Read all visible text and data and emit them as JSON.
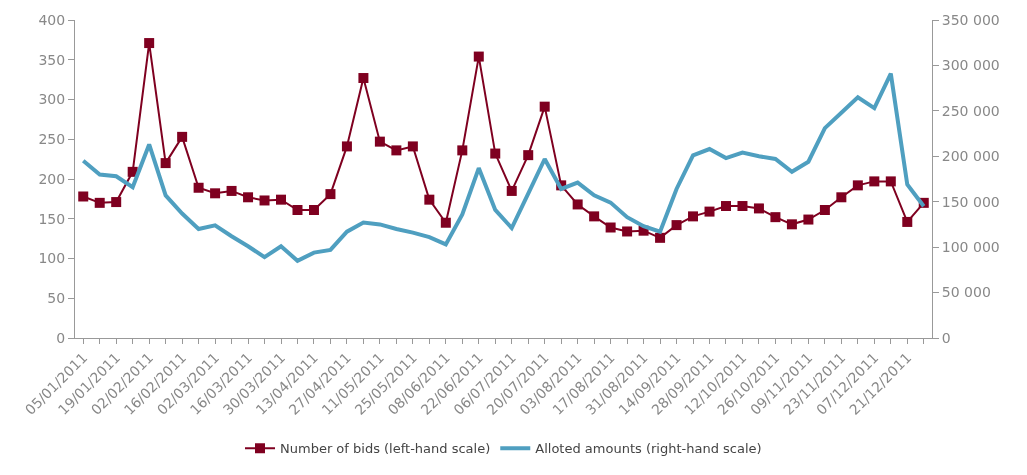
{
  "chart_data": {
    "type": "line",
    "categories": [
      "05/01/2011",
      null,
      "19/01/2011",
      null,
      "02/02/2011",
      null,
      "16/02/2011",
      null,
      "02/03/2011",
      null,
      "16/03/2011",
      null,
      "30/03/2011",
      null,
      "13/04/2011",
      null,
      "27/04/2011",
      null,
      "11/05/2011",
      null,
      "25/05/2011",
      null,
      "08/06/2011",
      null,
      "22/06/2011",
      null,
      "06/07/2011",
      null,
      "20/07/2011",
      null,
      "03/08/2011",
      null,
      "17/08/2011",
      null,
      "31/08/2011",
      null,
      "14/09/2011",
      null,
      "28/09/2011",
      null,
      "12/10/2011",
      null,
      "26/10/2011",
      null,
      "09/11/2011",
      null,
      "23/11/2011",
      null,
      "07/12/2011",
      null,
      "21/12/2011",
      null
    ],
    "series": [
      {
        "name": "Number of bids (left-hand scale)",
        "color": "#7f0020",
        "marker": "square",
        "values": [
          178,
          170,
          171,
          209,
          371,
          220,
          253,
          189,
          182,
          185,
          177,
          173,
          174,
          161,
          161,
          181,
          241,
          327,
          247,
          236,
          241,
          174,
          145,
          236,
          354,
          232,
          185,
          230,
          291,
          192,
          168,
          153,
          139,
          134,
          135,
          126,
          142,
          153,
          159,
          166,
          166,
          163,
          152,
          143,
          149,
          161,
          177,
          192,
          197,
          197,
          146,
          170
        ]
      },
      {
        "name": "Alloted amounts (right-hand scale)",
        "color": "#4f9fc0",
        "axis": "y2",
        "marker": "none",
        "values": [
          195000,
          180000,
          178000,
          166000,
          213000,
          157000,
          137000,
          120000,
          124000,
          112000,
          101000,
          89000,
          101000,
          85000,
          94000,
          97000,
          117000,
          127000,
          125000,
          120000,
          116000,
          111000,
          103000,
          136000,
          187000,
          141000,
          121000,
          159000,
          197000,
          164000,
          171000,
          157000,
          149000,
          133000,
          123000,
          117000,
          164000,
          201000,
          208000,
          198000,
          204000,
          200000,
          197000,
          183000,
          194000,
          231000,
          248000,
          265000,
          253000,
          291000,
          169000,
          145000
        ]
      }
    ],
    "ylim": [
      0,
      400
    ],
    "yticks": [
      0,
      50,
      100,
      150,
      200,
      250,
      300,
      350,
      400
    ],
    "y2lim": [
      0,
      350000
    ],
    "y2ticks": [
      {
        "value": 0,
        "label": "0"
      },
      {
        "value": 50000,
        "label": "50 000"
      },
      {
        "value": 100000,
        "label": "100 000"
      },
      {
        "value": 150000,
        "label": "150 000"
      },
      {
        "value": 200000,
        "label": "200 000"
      },
      {
        "value": 250000,
        "label": "250 000"
      },
      {
        "value": 300000,
        "label": "300 000"
      },
      {
        "value": 350000,
        "label": "350 000"
      }
    ],
    "grid": false,
    "legend": "bottom",
    "line_style": "solid"
  }
}
